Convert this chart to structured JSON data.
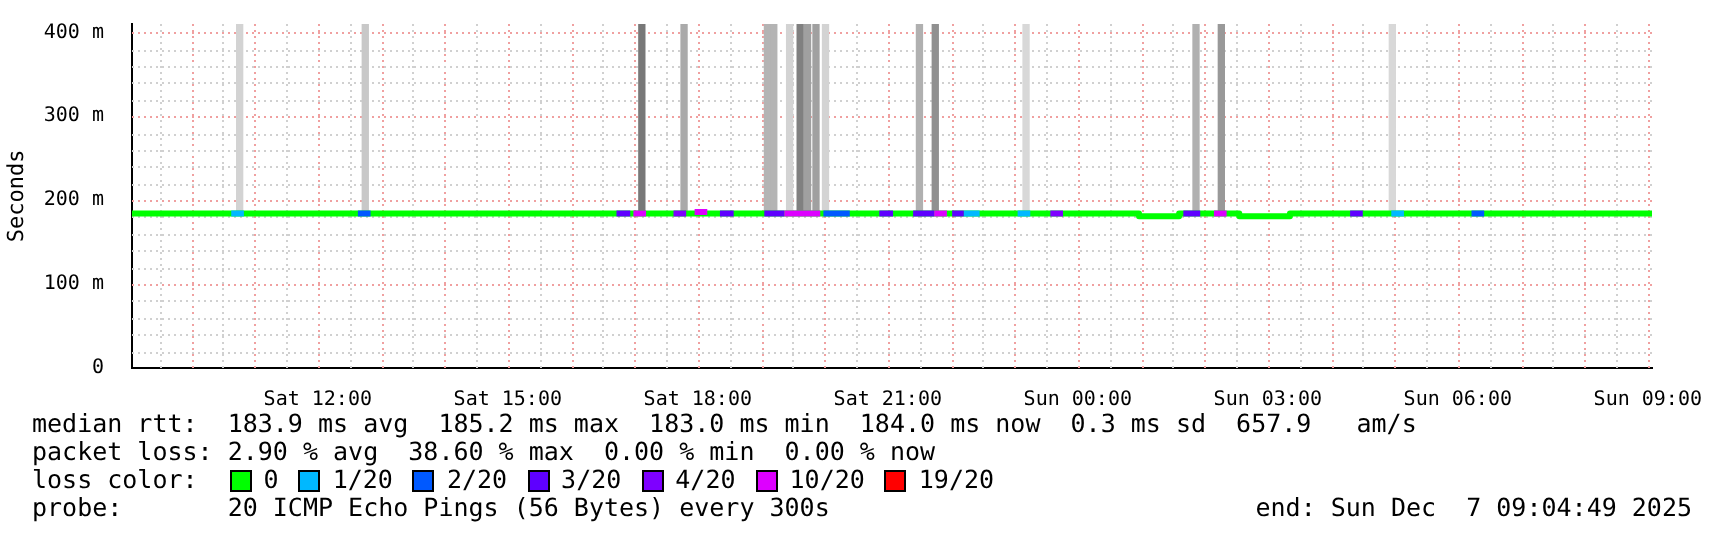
{
  "chart_data": {
    "type": "line",
    "ylabel": "Seconds",
    "legend_title": "loss color:",
    "legend": "bottom",
    "grid": true,
    "xlim": [
      "2025-12-06T09:04",
      "2025-12-07T09:04"
    ],
    "xticks": [
      {
        "value": "2025-12-06T10:00",
        "label": null
      },
      {
        "value": "2025-12-06T11:00",
        "label": null
      },
      {
        "value": "2025-12-06T12:00",
        "label": "Sat 12:00"
      },
      {
        "value": "2025-12-06T13:00",
        "label": null
      },
      {
        "value": "2025-12-06T14:00",
        "label": null
      },
      {
        "value": "2025-12-06T15:00",
        "label": "Sat 15:00"
      },
      {
        "value": "2025-12-06T16:00",
        "label": null
      },
      {
        "value": "2025-12-06T17:00",
        "label": null
      },
      {
        "value": "2025-12-06T18:00",
        "label": "Sat 18:00"
      },
      {
        "value": "2025-12-06T19:00",
        "label": null
      },
      {
        "value": "2025-12-06T20:00",
        "label": null
      },
      {
        "value": "2025-12-06T21:00",
        "label": "Sat 21:00"
      },
      {
        "value": "2025-12-06T22:00",
        "label": null
      },
      {
        "value": "2025-12-06T23:00",
        "label": null
      },
      {
        "value": "2025-12-07T00:00",
        "label": "Sun 00:00"
      },
      {
        "value": "2025-12-07T01:00",
        "label": null
      },
      {
        "value": "2025-12-07T02:00",
        "label": null
      },
      {
        "value": "2025-12-07T03:00",
        "label": "Sun 03:00"
      },
      {
        "value": "2025-12-07T04:00",
        "label": null
      },
      {
        "value": "2025-12-07T05:00",
        "label": null
      },
      {
        "value": "2025-12-07T06:00",
        "label": "Sun 06:00"
      },
      {
        "value": "2025-12-07T07:00",
        "label": null
      },
      {
        "value": "2025-12-07T08:00",
        "label": null
      },
      {
        "value": "2025-12-07T09:00",
        "label": "Sun 09:00"
      }
    ],
    "ylim": [
      0,
      410
    ],
    "yticks": [
      0,
      {
        "value": 100,
        "label": "100 m"
      },
      {
        "value": 200,
        "label": "200 m"
      },
      {
        "value": 300,
        "label": "300 m"
      },
      {
        "value": 400,
        "label": "400 m"
      }
    ],
    "series": [
      {
        "type": "bar",
        "base": [
          188,
          188,
          188,
          188,
          188,
          188,
          188,
          188,
          188,
          188,
          188,
          188,
          188,
          188,
          188,
          188,
          188
        ],
        "colors": [
          "#d3d3d3",
          "#c8c8c8",
          "#787878",
          "#aaaaaa",
          "#b4b4b4",
          "#b4b4b4",
          "#d3d3d3",
          "#808080",
          "#a0a0a0",
          "#a0a0a0",
          "#d3d3d3",
          "#b0b0b0",
          "#909090",
          "#d8d8d8",
          "#b0b0b0",
          "#999999",
          "#d8d8d8"
        ],
        "x": [
          "2025-12-06T10:46",
          "2025-12-06T12:45",
          "2025-12-06T17:07",
          "2025-12-06T17:47",
          "2025-12-06T19:06",
          "2025-12-06T19:12",
          "2025-12-06T19:27",
          "2025-12-06T19:37",
          "2025-12-06T19:44",
          "2025-12-06T19:52",
          "2025-12-06T20:01",
          "2025-12-06T21:30",
          "2025-12-06T21:45",
          "2025-12-06T23:11",
          "2025-12-07T01:52",
          "2025-12-07T02:16",
          "2025-12-07T04:58"
        ],
        "values": [
          222,
          222,
          222,
          222,
          222,
          222,
          222,
          222,
          222,
          222,
          222,
          222,
          222,
          222,
          222,
          222,
          222
        ]
      },
      {
        "name": "0",
        "color": "#00ff00",
        "x": [
          "2025-12-06T09:04",
          "2025-12-07T00:58",
          "2025-12-07T00:58",
          "2025-12-07T01:36",
          "2025-12-07T01:36",
          "2025-12-07T02:33",
          "2025-12-07T02:33",
          "2025-12-07T03:21",
          "2025-12-07T03:21",
          "2025-12-07T09:04"
        ],
        "values": [
          184,
          184,
          181,
          181,
          184,
          184,
          181,
          181,
          184,
          184
        ]
      },
      {
        "name": "1/20",
        "color": "#00b8ff",
        "x": [
          "2025-12-06T10:38",
          "2025-12-06T10:50",
          null,
          "2025-12-06T22:12",
          "2025-12-06T22:27",
          null,
          "2025-12-06T23:03",
          "2025-12-06T23:15",
          null,
          "2025-12-07T04:57",
          "2025-12-07T05:09"
        ],
        "values": [
          184,
          184,
          null,
          184,
          184,
          null,
          184,
          184,
          null,
          184,
          184
        ]
      },
      {
        "name": "2/20",
        "color": "#0059ff",
        "x": [
          "2025-12-06T12:38",
          "2025-12-06T12:50",
          null,
          "2025-12-06T19:59",
          "2025-12-06T20:24",
          null,
          "2025-12-07T06:13",
          "2025-12-07T06:25"
        ],
        "values": [
          184,
          184,
          null,
          184,
          184,
          null,
          184,
          184
        ]
      },
      {
        "name": "3/20",
        "color": "#5e00ff",
        "x": [
          "2025-12-06T16:43",
          "2025-12-06T16:56",
          null,
          "2025-12-06T18:21",
          "2025-12-06T18:34",
          null,
          "2025-12-06T19:03",
          "2025-12-06T19:22",
          null,
          "2025-12-06T20:52",
          "2025-12-06T21:05",
          null,
          "2025-12-06T21:24",
          "2025-12-06T21:44",
          null,
          "2025-12-06T22:01",
          "2025-12-06T22:12",
          null,
          "2025-12-07T01:40",
          "2025-12-07T01:56",
          null,
          "2025-12-07T04:18",
          "2025-12-07T04:30"
        ],
        "values": [
          184,
          184,
          null,
          184,
          184,
          null,
          184,
          184,
          null,
          184,
          184,
          null,
          184,
          184,
          null,
          184,
          184,
          null,
          184,
          184,
          null,
          184,
          184
        ]
      },
      {
        "name": "4/20",
        "color": "#7e00ff",
        "x": [
          "2025-12-06T17:37",
          "2025-12-06T17:49",
          null,
          "2025-12-06T23:34",
          "2025-12-06T23:46"
        ],
        "values": [
          184,
          184,
          null,
          184,
          184
        ]
      },
      {
        "name": "10/20",
        "color": "#dd00ff",
        "x": [
          "2025-12-06T16:59",
          "2025-12-06T17:11",
          null,
          "2025-12-06T17:57",
          "2025-12-06T18:09",
          null,
          "2025-12-06T19:22",
          "2025-12-06T19:56",
          null,
          "2025-12-06T21:44",
          "2025-12-06T21:56",
          null,
          "2025-12-07T02:09",
          "2025-12-07T02:21"
        ],
        "values": [
          184,
          184,
          null,
          186,
          186,
          null,
          184,
          184,
          null,
          184,
          184,
          null,
          184,
          184
        ]
      },
      {
        "name": "19/20",
        "color": "#ff0000"
      }
    ],
    "annotations": [
      "median rtt:  183.9 ms avg  185.2 ms max  183.0 ms min  184.0 ms now  0.3 ms sd  657.9   am/s",
      "packet loss: 2.90 % avg  38.60 % max  0.00 % min  0.00 % now",
      "probe:       20 ICMP Echo Pings (56 Bytes) every 300s",
      "end: Sun Dec  7 09:04:49 2025"
    ]
  }
}
